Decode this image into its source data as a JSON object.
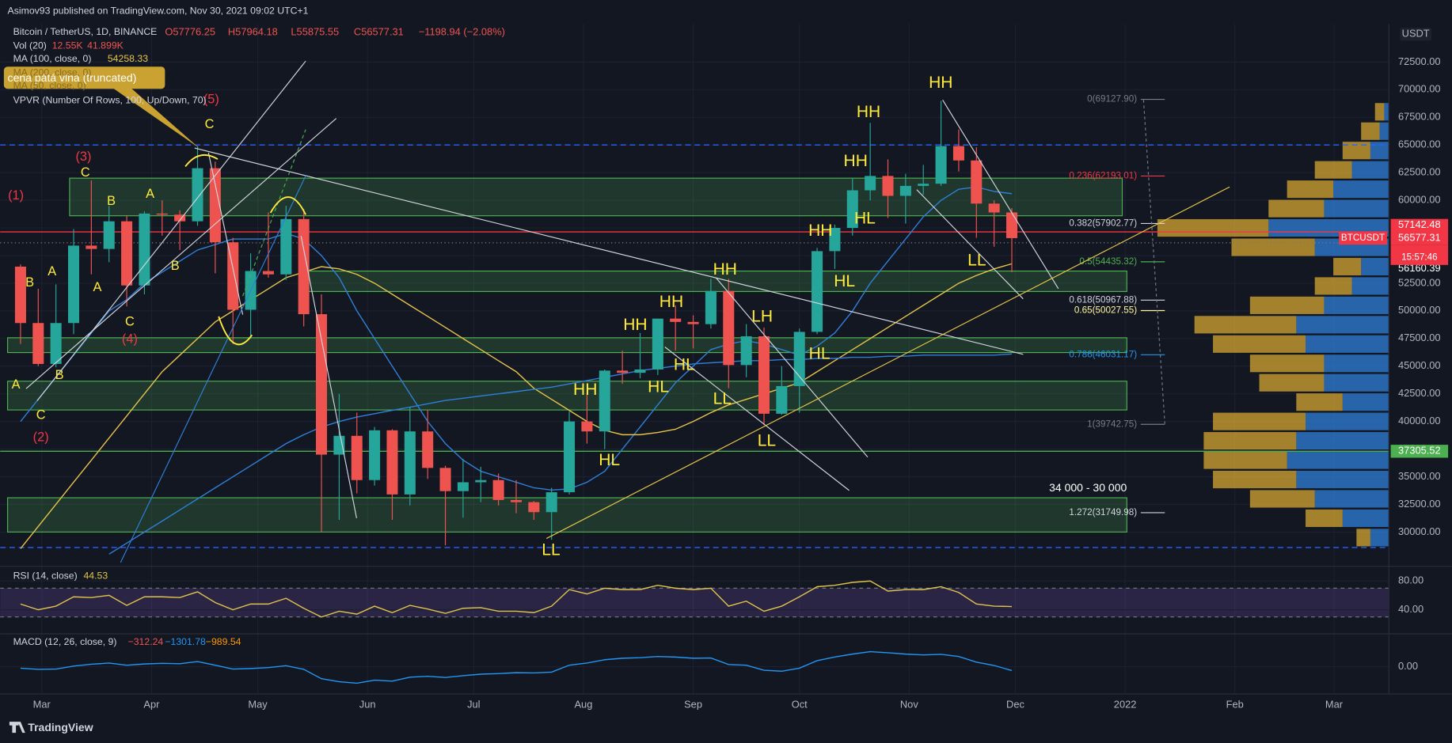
{
  "header": {
    "publisher": "Asimov93 published on TradingView.com, Nov 30, 2021 09:02 UTC+1",
    "symbol": "Bitcoin / TetherUS, 1D, BINANCE",
    "ohlc": [
      "O57776.25",
      "H57964.18",
      "L55875.55",
      "C56577.31",
      "−1198.94 (−2.08%)"
    ],
    "volume": {
      "name": "Vol (20)",
      "values": [
        "12.55K",
        "41.899K"
      ]
    },
    "ma100": {
      "name": "MA (100, close, 0)",
      "value": "54258.33"
    },
    "ma200": "MA (200, close, 0)",
    "ma50": "MA (50, close, 0)",
    "vpvr": "VPVR (Number Of Rows, 100, Up/Down, 70)",
    "callout": "cena pátá vlna (truncated)",
    "currency": "USDT",
    "brand": "TradingView"
  },
  "chart_data": [
    {
      "type": "candlestick",
      "xlim": [
        -1.15,
        77.3
      ],
      "xticks": [
        {
          "value": 1.2,
          "label": "Mar"
        },
        {
          "value": 7.4,
          "label": "Apr"
        },
        {
          "value": 13.4,
          "label": "May"
        },
        {
          "value": 19.6,
          "label": "Jun"
        },
        {
          "value": 25.6,
          "label": "Jul"
        },
        {
          "value": 31.8,
          "label": "Aug"
        },
        {
          "value": 38,
          "label": "Sep"
        },
        {
          "value": 44,
          "label": "Oct"
        },
        {
          "value": 50.2,
          "label": "Nov"
        },
        {
          "value": 56.2,
          "label": "Dec"
        },
        {
          "value": 62.4,
          "label": "2022"
        },
        {
          "value": 68.6,
          "label": "Feb"
        },
        {
          "value": 74.2,
          "label": "Mar"
        }
      ],
      "ylim": [
        27240,
        75600
      ],
      "yticks": [
        {
          "value": 30000,
          "label": "30000.00"
        },
        {
          "value": 32500,
          "label": "32500.00"
        },
        {
          "value": 35000,
          "label": "35000.00"
        },
        {
          "value": 37500,
          "label": "37500.00"
        },
        {
          "value": 40000,
          "label": "40000.00"
        },
        {
          "value": 42500,
          "label": "42500.00"
        },
        {
          "value": 45000,
          "label": "45000.00"
        },
        {
          "value": 47500,
          "label": "47500.00"
        },
        {
          "value": 50000,
          "label": "50000.00"
        },
        {
          "value": 52500,
          "label": "52500.00"
        },
        {
          "value": 55000,
          "label": "55000.00"
        },
        {
          "value": 57500,
          "label": "57500.00"
        },
        {
          "value": 60000,
          "label": "60000.00"
        },
        {
          "value": 62500,
          "label": "62500.00"
        },
        {
          "value": 65000,
          "label": "65000.00"
        },
        {
          "value": 67500,
          "label": "67500.00"
        },
        {
          "value": 70000,
          "label": "70000.00"
        },
        {
          "value": 72500,
          "label": "72500.00"
        }
      ],
      "grid": true,
      "up_color": "#26a69a",
      "down_color": "#ef5350",
      "open": [
        54000,
        48900,
        45200,
        48900,
        55900,
        55600,
        58100,
        52300,
        58800,
        58700,
        58100,
        62900,
        56200,
        50100,
        53600,
        53300,
        58300,
        49700,
        37000,
        38700,
        34700,
        39200,
        33400,
        39100,
        35800,
        33700,
        34500,
        34700,
        32900,
        32700,
        31800,
        33600,
        40000,
        39100,
        44600,
        44400,
        44700,
        49300,
        49000,
        48800,
        51800,
        45100,
        47700,
        40700,
        43200,
        48100,
        55400,
        57500,
        60900,
        62200,
        60400,
        61300,
        61500,
        64900,
        63600,
        59700,
        58900
      ],
      "high": [
        54200,
        52000,
        52400,
        57400,
        61800,
        59500,
        58600,
        59000,
        60000,
        59100,
        64900,
        63500,
        56600,
        55200,
        58900,
        59500,
        59200,
        51500,
        42500,
        40800,
        39500,
        39300,
        41300,
        41000,
        36000,
        36600,
        35900,
        35300,
        34700,
        32800,
        34000,
        40900,
        42600,
        44700,
        46400,
        48000,
        49300,
        50500,
        49600,
        52900,
        52900,
        48800,
        48500,
        45000,
        48400,
        55700,
        57800,
        62000,
        67000,
        63700,
        62400,
        63200,
        69000,
        66400,
        64800,
        60000,
        59300
      ],
      "low": [
        47000,
        45000,
        44900,
        47900,
        53300,
        54400,
        50400,
        51500,
        56800,
        55500,
        57700,
        53400,
        47000,
        47500,
        53000,
        52800,
        48600,
        30000,
        31100,
        33500,
        34200,
        31100,
        32400,
        34800,
        28800,
        31300,
        32700,
        32400,
        31700,
        31100,
        29300,
        33400,
        38000,
        37500,
        43400,
        43900,
        44200,
        46400,
        46600,
        48400,
        43000,
        44000,
        39700,
        40600,
        40800,
        47900,
        53800,
        56800,
        60000,
        58400,
        57900,
        60500,
        61300,
        62600,
        56600,
        55800,
        53500
      ],
      "close": [
        48900,
        45200,
        48900,
        55900,
        55600,
        58100,
        52300,
        58800,
        58700,
        58100,
        62900,
        56200,
        50100,
        53600,
        53300,
        58300,
        49700,
        37000,
        38700,
        34700,
        39200,
        33400,
        39100,
        35800,
        33700,
        34500,
        34700,
        32900,
        32700,
        31800,
        33600,
        40000,
        39100,
        44600,
        44400,
        44700,
        49300,
        49000,
        48800,
        51800,
        45100,
        47700,
        40700,
        43200,
        48100,
        55400,
        57500,
        60900,
        62200,
        60400,
        61300,
        61500,
        64900,
        63600,
        59700,
        58900,
        56577.31
      ],
      "moving_averages": [
        {
          "color": "#2f7fd8",
          "values": [
            40000,
            42000,
            44000,
            46000,
            48000,
            50000,
            51000,
            52500,
            53500,
            54500,
            55500,
            56000,
            56500,
            56500,
            56500,
            57000,
            56500,
            55000,
            53000,
            50000,
            47500,
            45000,
            42500,
            40000,
            38000,
            36500,
            35500,
            35000,
            34500,
            34000,
            33800,
            33900,
            34500,
            35500,
            37500,
            39500,
            41500,
            43500,
            45000,
            46500,
            47000,
            47300,
            47000,
            46500,
            46000,
            46800,
            48000,
            50000,
            52500,
            54500,
            56500,
            58500,
            60000,
            61000,
            61200,
            60800,
            60600
          ]
        },
        {
          "color": "#e6c34a",
          "values": [
            28500,
            30500,
            32500,
            34500,
            36500,
            38500,
            40500,
            42500,
            44500,
            46000,
            47500,
            49000,
            50000,
            51000,
            52000,
            53000,
            53500,
            54000,
            53800,
            53300,
            52500,
            51500,
            50500,
            49500,
            48500,
            47500,
            46500,
            45500,
            44500,
            43000,
            42000,
            41000,
            40000,
            39200,
            38800,
            38800,
            39000,
            39300,
            40000,
            40800,
            41500,
            42000,
            42500,
            43000,
            43500,
            44500,
            45500,
            46500,
            47500,
            48500,
            49500,
            50500,
            51500,
            52500,
            53200,
            53800,
            54258.33
          ]
        },
        {
          "color": "#2f7fd8",
          "values": [
            null,
            null,
            null,
            null,
            null,
            28000,
            29000,
            30000,
            31000,
            32000,
            33000,
            34000,
            35000,
            36000,
            37000,
            38000,
            38800,
            39500,
            40000,
            40400,
            40700,
            41000,
            41300,
            41600,
            41900,
            42100,
            42300,
            42500,
            42700,
            42900,
            43100,
            43400,
            43700,
            44000,
            44300,
            44600,
            44800,
            45000,
            45200,
            45300,
            45400,
            45500,
            45500,
            45600,
            45600,
            45700,
            45700,
            45800,
            45800,
            45900,
            45900,
            46000,
            46000,
            46000,
            46000,
            46000,
            46100
          ]
        }
      ],
      "zones": [
        {
          "low": 58600,
          "high": 62000
        },
        {
          "low": 51750,
          "high": 53600
        },
        {
          "low": 46230,
          "high": 47570
        },
        {
          "low": 41040,
          "high": 43640
        },
        {
          "low": 30000,
          "high": 33100
        }
      ],
      "zone_label": "34 000 - 30 000",
      "levels": [
        {
          "value": 65000,
          "color": "#2962ff",
          "style": "dashed"
        },
        {
          "value": 28600,
          "color": "#2962ff",
          "style": "dashed"
        },
        {
          "value": 57142.48,
          "color": "#f23645",
          "style": "solid"
        },
        {
          "value": 56160.39,
          "color": "#787b86",
          "style": "dotted"
        },
        {
          "value": 37305.52,
          "color": "#4caf50",
          "style": "solid"
        }
      ],
      "price_badges": [
        {
          "value": 57142.48,
          "color": "#f23645"
        },
        {
          "value": 56577.31,
          "color": "#f23645"
        },
        {
          "value": 56160.39,
          "color": "#131722"
        },
        {
          "value": 37305.52,
          "color": "#4caf50"
        }
      ],
      "symbol_badge": "BTCUSDT",
      "countdown": "15:57:46",
      "fib": [
        {
          "value": 69127.9,
          "label": "0(69127.90)",
          "color": "#787b86"
        },
        {
          "value": 62193.01,
          "label": "0.236(62193.01)",
          "color": "#f23645"
        },
        {
          "value": 57902.77,
          "label": "0.382(57902.77)",
          "color": "#d1d4dc"
        },
        {
          "value": 54435.32,
          "label": "0.5(54435.32)",
          "color": "#4caf50"
        },
        {
          "value": 50967.88,
          "label": "0.618(50967.88)",
          "color": "#d1d4dc"
        },
        {
          "value": 50027.55,
          "label": "0.65(50027.55)",
          "color": "#fff59d"
        },
        {
          "value": 46031.17,
          "label": "0.786(46031.17)",
          "color": "#2196f3"
        },
        {
          "value": 39742.75,
          "label": "1(39742.75)",
          "color": "#787b86"
        },
        {
          "value": 31749.98,
          "label": "1.272(31749.98)",
          "color": "#d1d4dc"
        }
      ],
      "volume_profile": {
        "xlim": [
          0,
          400
        ],
        "prices": [
          29500,
          31250,
          33000,
          34750,
          36500,
          38250,
          40000,
          41750,
          43500,
          45250,
          47000,
          48750,
          50500,
          52250,
          54000,
          55750,
          57500,
          59250,
          61000,
          62750,
          64500,
          66250,
          68000
        ],
        "up": [
          20,
          50,
          80,
          100,
          110,
          100,
          90,
          50,
          70,
          70,
          90,
          100,
          70,
          40,
          30,
          80,
          130,
          70,
          60,
          40,
          20,
          10,
          5
        ],
        "down": [
          15,
          40,
          70,
          90,
          90,
          100,
          100,
          50,
          70,
          80,
          100,
          110,
          80,
          40,
          30,
          90,
          120,
          60,
          50,
          40,
          30,
          20,
          10
        ],
        "up_color": "#2f7fd8",
        "down_color": "#d4a531"
      },
      "annotations": {
        "structure": [
          "HH",
          "HH",
          "HH",
          "HL",
          "HH",
          "HL",
          "LL",
          "HH",
          "LH",
          "HH",
          "HH",
          "HL",
          "HL",
          "LL",
          "HL",
          "LL",
          "HH",
          "HL",
          "LL"
        ],
        "waves": [
          "C",
          "C",
          "B",
          "A",
          "B",
          "A",
          "A",
          "B",
          "C",
          "B",
          "A",
          "C"
        ],
        "counts": [
          "(5)",
          "(3)",
          "(1)",
          "(4)",
          "(2)"
        ]
      }
    },
    {
      "type": "line",
      "title": "RSI (14, close)",
      "color": "#e0c34a",
      "ylim": [
        22,
        94
      ],
      "yticks": [
        {
          "value": 40,
          "label": "40.00"
        },
        {
          "value": 80,
          "label": "80.00"
        }
      ],
      "band": [
        30,
        70
      ],
      "values": [
        48,
        40,
        45,
        58,
        57,
        60,
        46,
        58,
        58,
        57,
        65,
        50,
        40,
        48,
        48,
        56,
        42,
        30,
        38,
        34,
        45,
        36,
        46,
        41,
        35,
        42,
        43,
        38,
        38,
        36,
        45,
        68,
        62,
        70,
        68,
        68,
        74,
        70,
        68,
        70,
        45,
        52,
        38,
        45,
        58,
        72,
        74,
        78,
        80,
        66,
        68,
        68,
        72,
        64,
        48,
        45,
        44.53
      ]
    },
    {
      "type": "line",
      "title": "MACD (12, 26, close, 9)",
      "color": "#2196f3",
      "ylim": [
        -6000,
        10000
      ],
      "yticks": [
        {
          "value": 0,
          "label": "0.00"
        }
      ],
      "legend_values": [
        "−312.24",
        "−1301.78",
        "−989.54"
      ],
      "values": [
        -500,
        -900,
        -800,
        200,
        800,
        1200,
        500,
        900,
        1100,
        1000,
        1700,
        500,
        -800,
        -600,
        -300,
        300,
        -900,
        -4000,
        -5000,
        -5500,
        -4500,
        -4800,
        -3500,
        -3200,
        -3600,
        -3000,
        -2500,
        -2300,
        -2000,
        -2100,
        -1800,
        500,
        1200,
        2300,
        2800,
        3000,
        3400,
        3200,
        2800,
        2900,
        700,
        500,
        -1200,
        -1500,
        -500,
        2000,
        3200,
        4200,
        5000,
        4600,
        4200,
        3900,
        4100,
        3400,
        1500,
        400,
        -1301.78
      ]
    }
  ]
}
